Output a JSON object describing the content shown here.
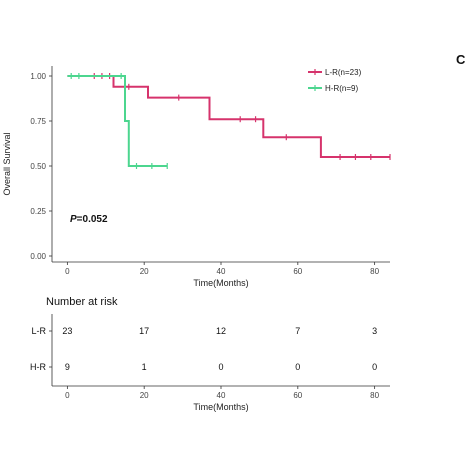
{
  "panel_labels": [
    "C"
  ],
  "chart_data": [
    {
      "type": "line",
      "ylabel": "Overall Survival",
      "xlabel": "Time(Months)",
      "xlim": [
        -4,
        84
      ],
      "ylim": [
        0,
        1.0
      ],
      "x_ticks": [
        0,
        20,
        40,
        60,
        80
      ],
      "y_ticks": [
        "0.00",
        "0.25",
        "0.50",
        "0.75",
        "1.00"
      ],
      "annotation": "P=0.052",
      "legend_position": "top-right",
      "grid": false,
      "series": [
        {
          "name": "L-R(n=23)",
          "color": "#d6336c",
          "steps": [
            [
              0,
              1.0
            ],
            [
              12,
              1.0
            ],
            [
              12,
              0.94
            ],
            [
              21,
              0.94
            ],
            [
              21,
              0.88
            ],
            [
              37,
              0.88
            ],
            [
              37,
              0.76
            ],
            [
              51,
              0.76
            ],
            [
              51,
              0.66
            ],
            [
              66,
              0.66
            ],
            [
              66,
              0.55
            ],
            [
              84,
              0.55
            ]
          ],
          "censored": [
            [
              7,
              1.0
            ],
            [
              9,
              1.0
            ],
            [
              11,
              1.0
            ],
            [
              16,
              0.94
            ],
            [
              29,
              0.88
            ],
            [
              45,
              0.76
            ],
            [
              49,
              0.76
            ],
            [
              57,
              0.66
            ],
            [
              71,
              0.55
            ],
            [
              75,
              0.55
            ],
            [
              79,
              0.55
            ],
            [
              84,
              0.55
            ]
          ]
        },
        {
          "name": "H-R(n=9)",
          "color": "#4cd68f",
          "steps": [
            [
              0,
              1.0
            ],
            [
              15,
              1.0
            ],
            [
              15,
              0.75
            ],
            [
              16,
              0.75
            ],
            [
              16,
              0.5
            ],
            [
              26,
              0.5
            ]
          ],
          "censored": [
            [
              1,
              1.0
            ],
            [
              3,
              1.0
            ],
            [
              14,
              1.0
            ],
            [
              18,
              0.5
            ],
            [
              22,
              0.5
            ],
            [
              26,
              0.5
            ]
          ]
        }
      ]
    },
    {
      "type": "table",
      "title": "Number at risk",
      "xlabel": "Time(Months)",
      "x_ticks": [
        0,
        20,
        40,
        60,
        80
      ],
      "rows": [
        {
          "name": "L-R",
          "values": [
            23,
            17,
            12,
            7,
            3
          ]
        },
        {
          "name": "H-R",
          "values": [
            9,
            1,
            0,
            0,
            0
          ]
        }
      ]
    }
  ]
}
